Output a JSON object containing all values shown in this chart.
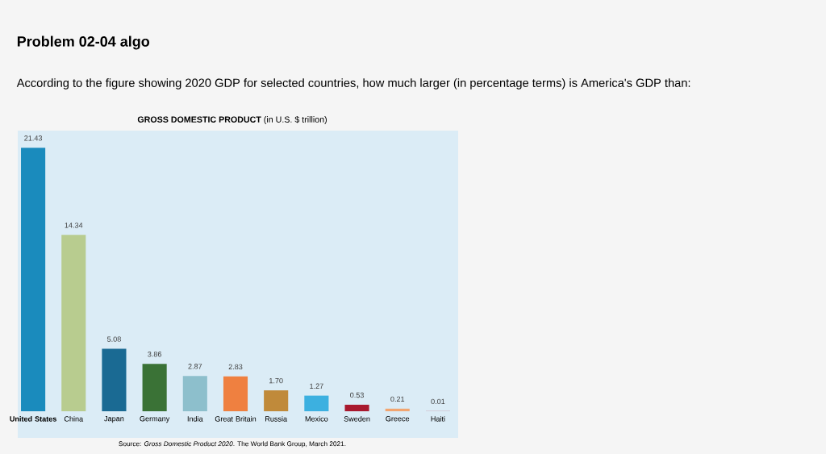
{
  "chart_data": {
    "type": "bar",
    "title": "**GROSS DOMESTIC PRODUCT** (in U.S. $ trillion)",
    "categories": [
      "United States",
      "China",
      "Japan",
      "Germany",
      "India",
      "Great Britain",
      "Russia",
      "Mexico",
      "Sweden",
      "Greece",
      "Haiti"
    ],
    "values": [
      21.43,
      14.34,
      5.08,
      3.86,
      2.87,
      2.83,
      1.7,
      1.27,
      0.53,
      0.21,
      0.01
    ],
    "value_labels": [
      "21.43",
      "14.34",
      "5.08",
      "3.86",
      "2.87",
      "2.83",
      "1.70",
      "1.27",
      "0.53",
      "0.21",
      "0.01"
    ],
    "colors": [
      "#1a8bbd",
      "#b8cc8f",
      "#1a6a93",
      "#3a7236",
      "#8dbfcc",
      "#ef8040",
      "#c08a3a",
      "#3cb0e0",
      "#a8192e",
      "#f2a570",
      "#b02a3a"
    ],
    "annotations": [
      "Problem 02-04 algo",
      "According to the figure showing 2020 GDP for selected countries, how much larger (in percentage terms) is America's GDP than:",
      "Source: *Gross Domestic Product 2020*. The World Bank Group, March 2021."
    ]
  }
}
